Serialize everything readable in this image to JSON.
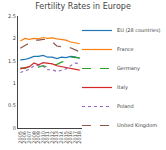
{
  "chart_data": {
    "type": "line",
    "title": "Fertility Rates in Europe",
    "x": [
      2005,
      2006,
      2007,
      2008,
      2009,
      2010,
      2011,
      2012,
      2013,
      2014,
      2015,
      2016,
      2017,
      2018
    ],
    "series": [
      {
        "name": "EU (28 countries)",
        "line_style": "solid",
        "values": [
          1.52,
          1.53,
          1.56,
          1.6,
          1.6,
          1.62,
          1.58,
          1.58,
          1.55,
          1.58,
          1.57,
          1.6,
          1.59,
          1.55
        ]
      },
      {
        "name": "France",
        "line_style": "solid",
        "values": [
          1.94,
          2.0,
          1.98,
          2.0,
          1.99,
          2.02,
          2.0,
          2.01,
          1.99,
          1.98,
          1.96,
          1.92,
          1.9,
          1.88
        ]
      },
      {
        "name": "Germany",
        "line_style": "dashed",
        "values": [
          1.34,
          1.33,
          1.37,
          1.38,
          1.36,
          1.39,
          1.36,
          1.41,
          1.42,
          1.47,
          1.5,
          1.59,
          1.57,
          1.57
        ]
      },
      {
        "name": "Italy",
        "line_style": "solid",
        "values": [
          1.32,
          1.35,
          1.37,
          1.45,
          1.41,
          1.46,
          1.44,
          1.43,
          1.39,
          1.37,
          1.35,
          1.34,
          1.32,
          1.29
        ]
      },
      {
        "name": "Poland",
        "line_style": "dotted",
        "values": [
          1.24,
          1.27,
          1.31,
          1.39,
          1.4,
          1.38,
          1.3,
          1.3,
          1.26,
          1.29,
          1.32,
          1.39,
          1.45,
          1.44
        ]
      },
      {
        "name": "United Kingdom",
        "line_style": "dashed",
        "values": [
          1.78,
          1.84,
          1.9,
          1.96,
          1.96,
          1.98,
          1.97,
          1.92,
          1.83,
          1.81,
          1.8,
          1.79,
          1.74,
          1.7
        ]
      }
    ],
    "xlim": [
      2004.5,
      2018.5
    ],
    "xticks": [
      2005,
      2006,
      2007,
      2008,
      2009,
      2010,
      2011,
      2012,
      2013,
      2014,
      2015,
      2016,
      2017,
      2018
    ],
    "ylim": [
      0,
      2.5
    ],
    "yticks": [
      0,
      0.5,
      1,
      1.5,
      2,
      2.5
    ],
    "grid": false,
    "legend": "right"
  }
}
